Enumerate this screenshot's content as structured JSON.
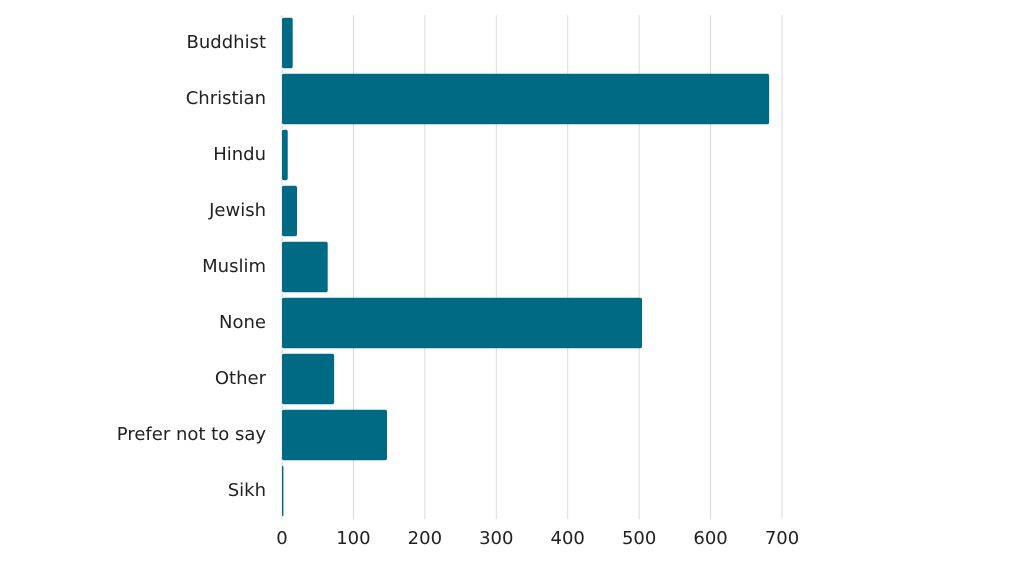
{
  "chart_data": {
    "type": "hbar",
    "categories": [
      "Buddhist",
      "Christian",
      "Hindu",
      "Jewish",
      "Muslim",
      "None",
      "Other",
      "Prefer not to say",
      "Sikh"
    ],
    "values": [
      15,
      682,
      8,
      21,
      64,
      504,
      73,
      147,
      2
    ],
    "color": "#006a85",
    "xlim": [
      0,
      700
    ],
    "xticks": [
      0,
      100,
      200,
      300,
      400,
      500,
      600,
      700
    ],
    "grid": true
  }
}
